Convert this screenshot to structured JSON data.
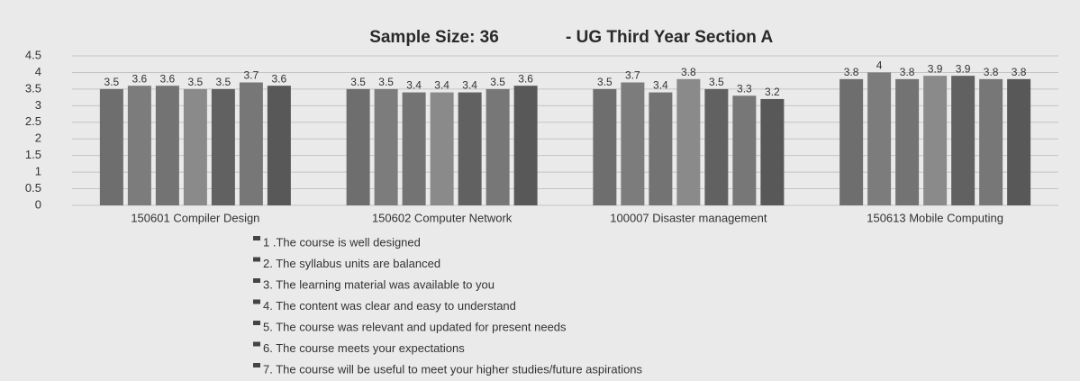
{
  "chart_data": {
    "type": "bar",
    "title": "Sample Size: 36",
    "subtitle": "- UG Third Year Section A",
    "categories": [
      "150601 Compiler Design",
      "150602 Computer Network",
      "100007 Disaster management",
      "150613 Mobile Computing"
    ],
    "series": [
      {
        "name": "1 .The course is well designed",
        "color": "#6e6e6e",
        "values": [
          3.5,
          3.5,
          3.5,
          3.8
        ]
      },
      {
        "name": "2. The syllabus units are balanced",
        "color": "#7c7c7c",
        "values": [
          3.6,
          3.5,
          3.7,
          4
        ]
      },
      {
        "name": "3. The learning material was available to you",
        "color": "#737373",
        "values": [
          3.6,
          3.4,
          3.4,
          3.8
        ]
      },
      {
        "name": "4. The content was clear and easy to understand",
        "color": "#8a8a8a",
        "values": [
          3.5,
          3.4,
          3.8,
          3.9
        ]
      },
      {
        "name": "5. The course was relevant and updated for present needs",
        "color": "#616161",
        "values": [
          3.5,
          3.4,
          3.5,
          3.9
        ]
      },
      {
        "name": "6. The course meets your expectations",
        "color": "#777777",
        "values": [
          3.7,
          3.5,
          3.3,
          3.8
        ]
      },
      {
        "name": "7. The course will be useful to meet your higher studies/future aspirations",
        "color": "#585858",
        "values": [
          3.6,
          3.6,
          3.2,
          3.8
        ]
      }
    ],
    "ylim": [
      0,
      4.5
    ],
    "yticks": [
      0,
      0.5,
      1,
      1.5,
      2,
      2.5,
      3,
      3.5,
      4,
      4.5
    ],
    "grid": true
  }
}
